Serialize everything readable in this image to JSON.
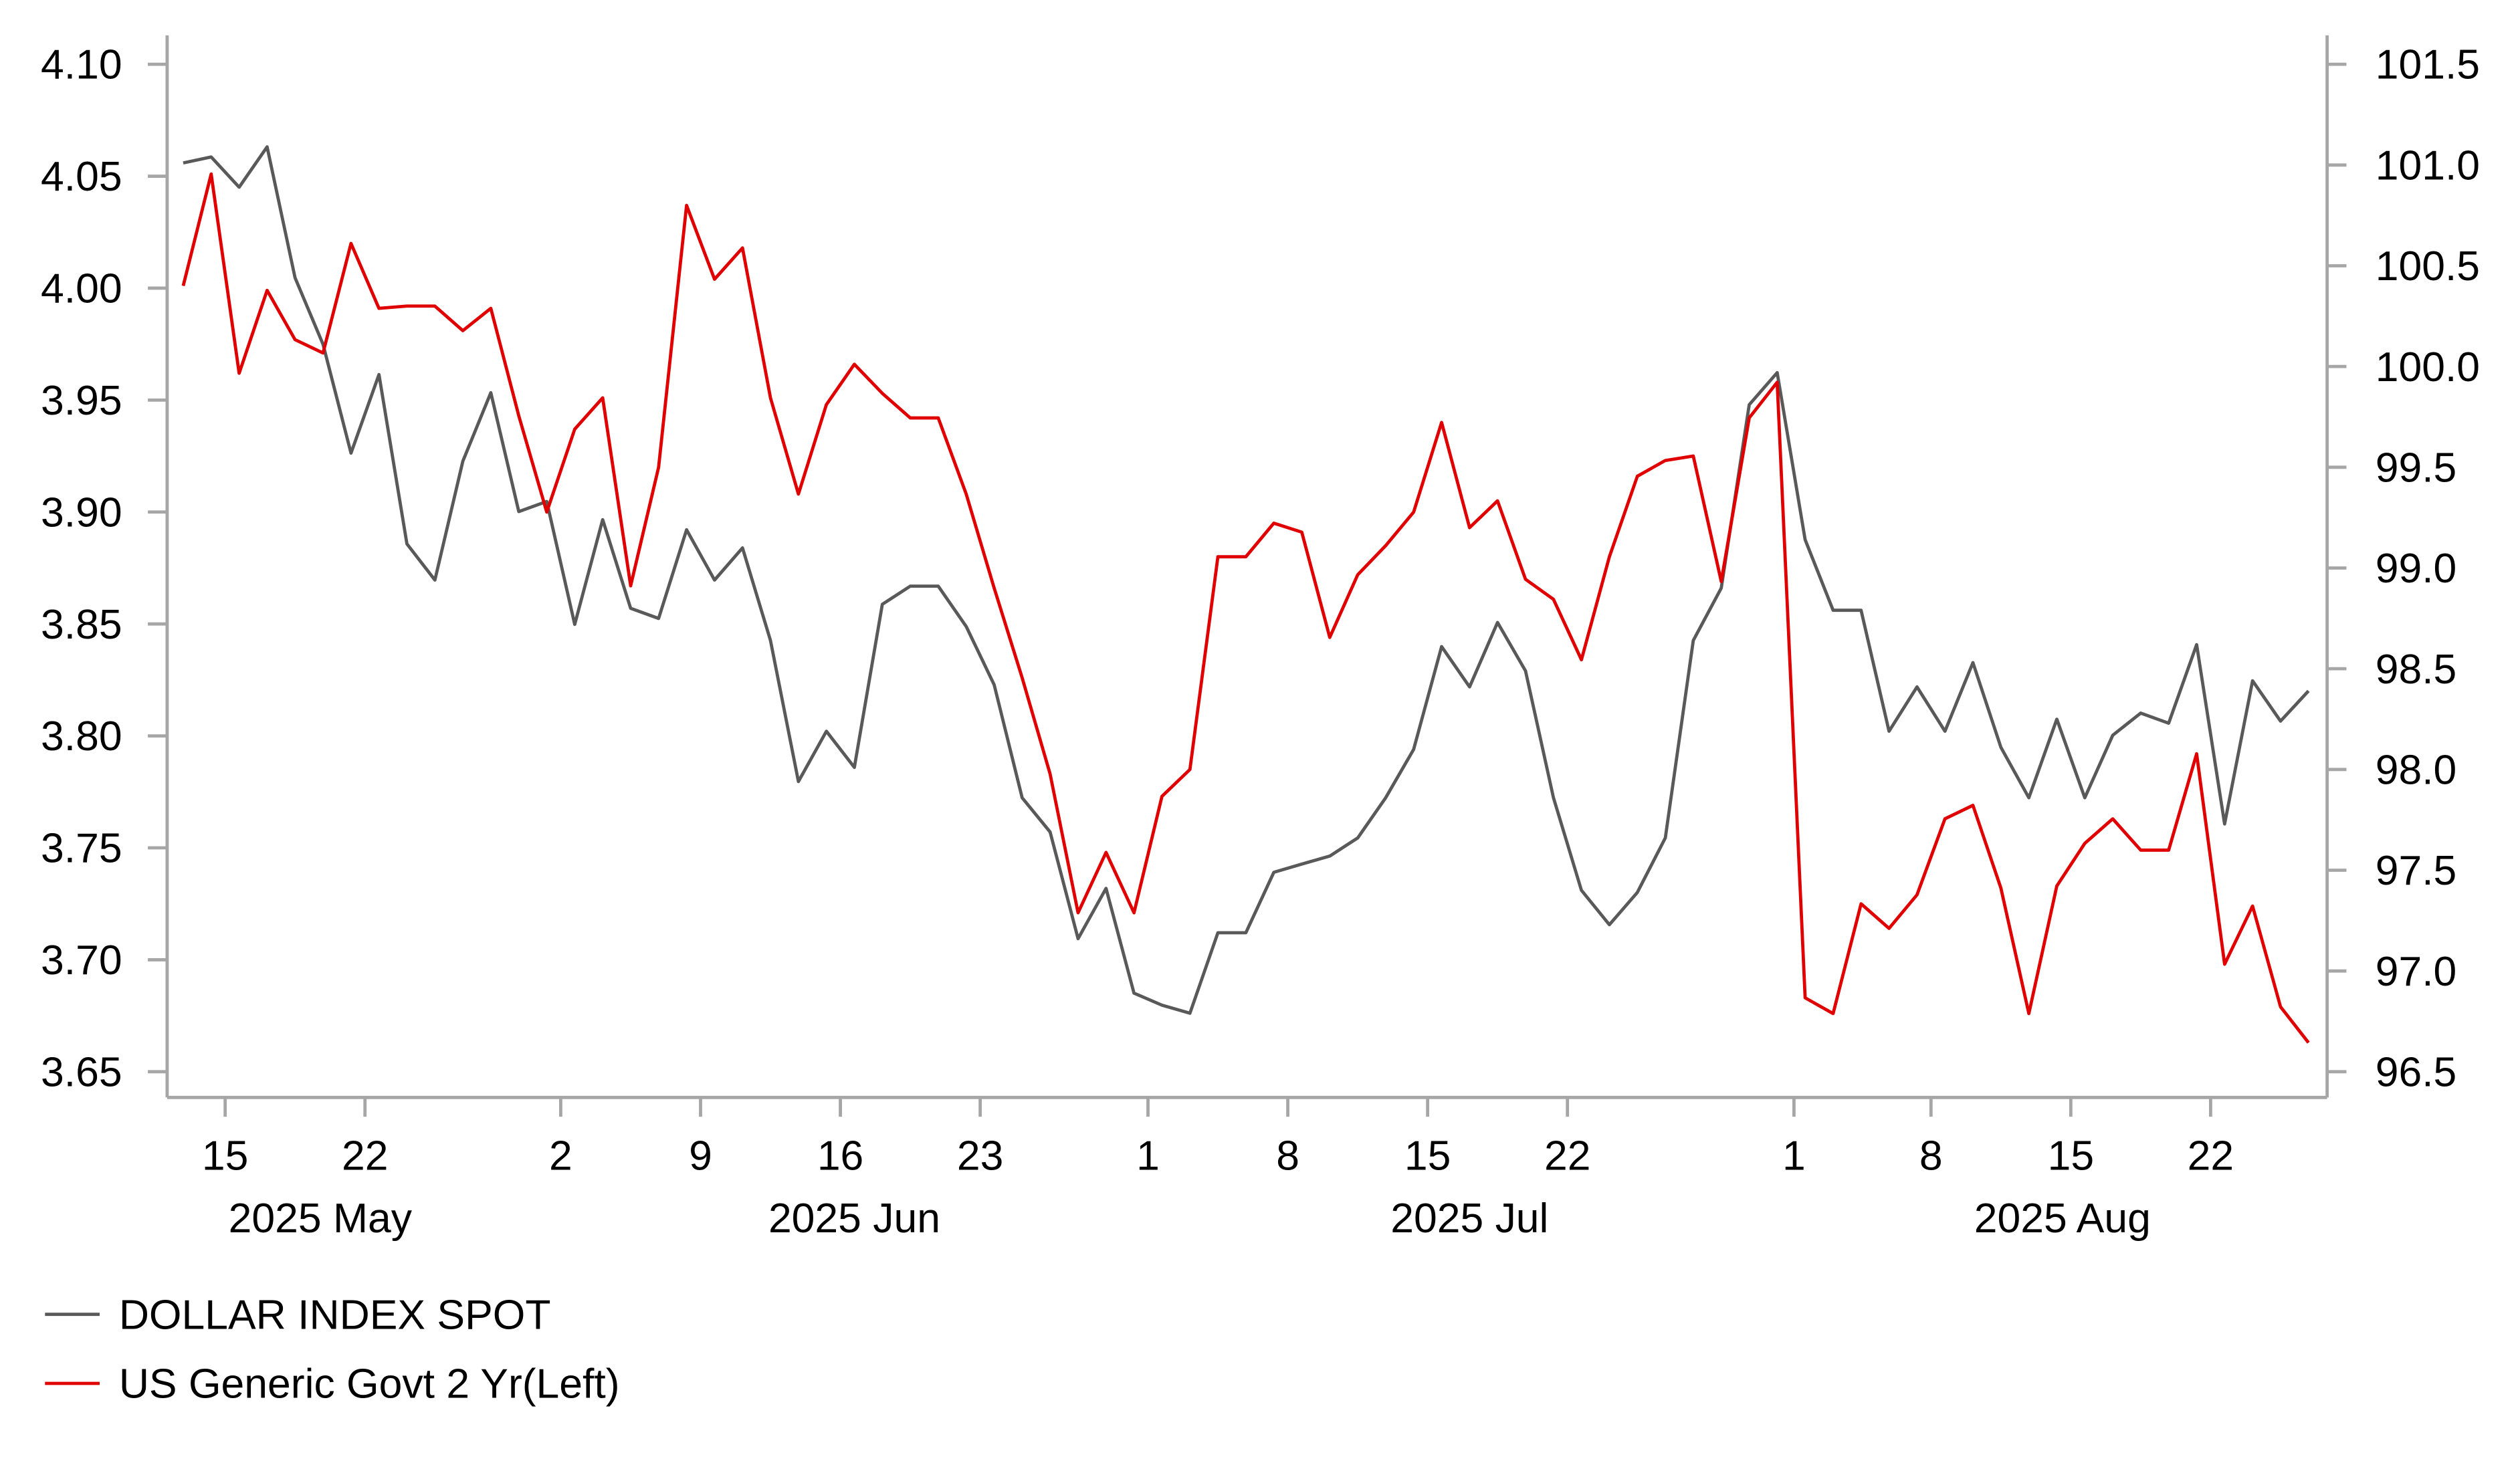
{
  "chart_data": {
    "type": "line",
    "title": "",
    "x_note": "business-day index, 0 = first observation (mid May 2025)",
    "x_ticks": [
      {
        "label": "15",
        "index": 1.5
      },
      {
        "label": "22",
        "index": 6.5
      },
      {
        "label": "2",
        "index": 13.5
      },
      {
        "label": "9",
        "index": 18.5
      },
      {
        "label": "16",
        "index": 23.5
      },
      {
        "label": "23",
        "index": 28.5
      },
      {
        "label": "1",
        "index": 34.5
      },
      {
        "label": "8",
        "index": 39.5
      },
      {
        "label": "15",
        "index": 44.5
      },
      {
        "label": "22",
        "index": 49.5
      },
      {
        "label": "1",
        "index": 57.6
      },
      {
        "label": "8",
        "index": 62.5
      },
      {
        "label": "15",
        "index": 67.5
      },
      {
        "label": "22",
        "index": 72.5
      }
    ],
    "month_labels": [
      {
        "label": "2025 May",
        "index": 4.9
      },
      {
        "label": "2025 Jun",
        "index": 24
      },
      {
        "label": "2025 Jul",
        "index": 46
      },
      {
        "label": "2025 Aug",
        "index": 67.2
      }
    ],
    "x_range": [
      -0.6,
      76.6
    ],
    "left_axis": {
      "ylim": [
        3.65,
        4.1
      ],
      "ticks": [
        "4.10",
        "4.05",
        "4.00",
        "3.95",
        "3.90",
        "3.85",
        "3.80",
        "3.75",
        "3.70",
        "3.65"
      ],
      "extra_bottom": 0.012
    },
    "right_axis": {
      "ylim": [
        96.5,
        101.5
      ],
      "ticks": [
        "101.5",
        "101.0",
        "100.5",
        "100.0",
        "99.5",
        "99.0",
        "98.5",
        "98.0",
        "97.5",
        "97.0",
        "96.5"
      ]
    },
    "series": [
      {
        "name": "DOLLAR INDEX SPOT",
        "axis": "right",
        "color": "#595959",
        "values": [
          101.01,
          101.04,
          100.89,
          101.09,
          100.44,
          100.11,
          99.57,
          99.96,
          99.12,
          98.94,
          99.53,
          99.87,
          99.28,
          99.33,
          98.72,
          99.24,
          98.8,
          98.75,
          99.19,
          98.94,
          99.1,
          98.64,
          97.94,
          98.19,
          98.01,
          98.82,
          98.91,
          98.91,
          98.71,
          98.42,
          97.86,
          97.69,
          97.16,
          97.41,
          96.89,
          96.83,
          96.79,
          97.19,
          97.19,
          97.49,
          97.53,
          97.57,
          97.66,
          97.86,
          98.1,
          98.61,
          98.41,
          98.73,
          98.49,
          97.86,
          97.4,
          97.23,
          97.39,
          97.66,
          98.64,
          98.9,
          99.81,
          99.97,
          99.14,
          98.79,
          98.79,
          98.19,
          98.41,
          98.19,
          98.53,
          98.11,
          97.86,
          98.25,
          97.86,
          98.17,
          98.28,
          98.23,
          98.62,
          97.73,
          98.44,
          98.24,
          98.39
        ]
      },
      {
        "name": "US Generic Govt 2 Yr(Left)",
        "axis": "left",
        "color": "#e00000",
        "values": [
          4.001,
          4.051,
          3.962,
          3.999,
          3.977,
          3.971,
          4.02,
          3.991,
          3.992,
          3.992,
          3.981,
          3.991,
          3.943,
          3.9,
          3.937,
          3.951,
          3.867,
          3.92,
          4.037,
          4.004,
          4.018,
          3.951,
          3.908,
          3.948,
          3.966,
          3.953,
          3.942,
          3.942,
          3.908,
          3.866,
          3.826,
          3.783,
          3.721,
          3.748,
          3.721,
          3.773,
          3.785,
          3.88,
          3.88,
          3.895,
          3.891,
          3.844,
          3.872,
          3.885,
          3.9,
          3.94,
          3.893,
          3.905,
          3.87,
          3.861,
          3.834,
          3.88,
          3.916,
          3.923,
          3.925,
          3.869,
          3.942,
          3.958,
          3.683,
          3.676,
          3.725,
          3.714,
          3.729,
          3.763,
          3.769,
          3.732,
          3.676,
          3.733,
          3.752,
          3.763,
          3.749,
          3.749,
          3.792,
          3.698,
          3.724,
          3.679,
          3.663
        ]
      }
    ],
    "legend": {
      "placement": "bottom-left",
      "entries": [
        "DOLLAR INDEX SPOT",
        "US Generic Govt 2 Yr(Left)"
      ]
    },
    "axis_color": "#a6a6a6",
    "grid": false
  }
}
